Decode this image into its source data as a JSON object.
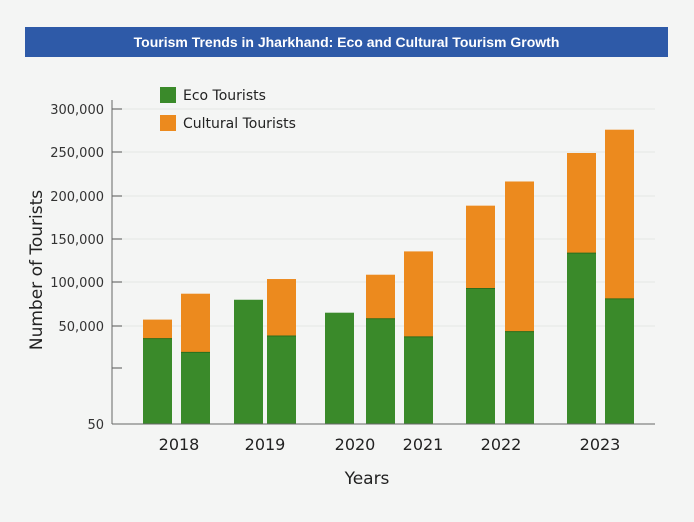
{
  "chart_data": {
    "type": "bar",
    "title": "Tourism Trends in Jharkhand: Eco and Cultural Tourism Growth",
    "xlabel": "Years",
    "ylabel": "Number of Tourists",
    "categories": [
      "2018",
      "2019",
      "2020",
      "2021",
      "2022",
      "2023"
    ],
    "y_tick_labels": [
      "50",
      "",
      "50,000",
      "100,000",
      "150,000",
      "200,000",
      "250,000",
      "300,000"
    ],
    "series": [
      {
        "name": "Eco Tourists",
        "color": "#3a8a2a"
      },
      {
        "name": "Cultural Tourists",
        "color": "#ec8a1e"
      }
    ],
    "bars": [
      {
        "group": "2018",
        "eco": 60000,
        "cultural": 22000
      },
      {
        "group": "2018",
        "eco": 44000,
        "cultural": 68000
      },
      {
        "group": "2019",
        "eco": 105000,
        "cultural": 0
      },
      {
        "group": "2019",
        "eco": 63000,
        "cultural": 66000
      },
      {
        "group": "2020",
        "eco": 90000,
        "cultural": 0
      },
      {
        "group": "2020",
        "eco": 83000,
        "cultural": 51000
      },
      {
        "group": "2021",
        "eco": 62000,
        "cultural": 99000
      },
      {
        "group": "2022",
        "eco": 118000,
        "cultural": 96000
      },
      {
        "group": "2022",
        "eco": 68000,
        "cultural": 174000
      },
      {
        "group": "2023",
        "eco": 159000,
        "cultural": 116000
      },
      {
        "group": "2023",
        "eco": 106000,
        "cultural": 196000
      }
    ],
    "legend": "top-left",
    "grid": true
  }
}
